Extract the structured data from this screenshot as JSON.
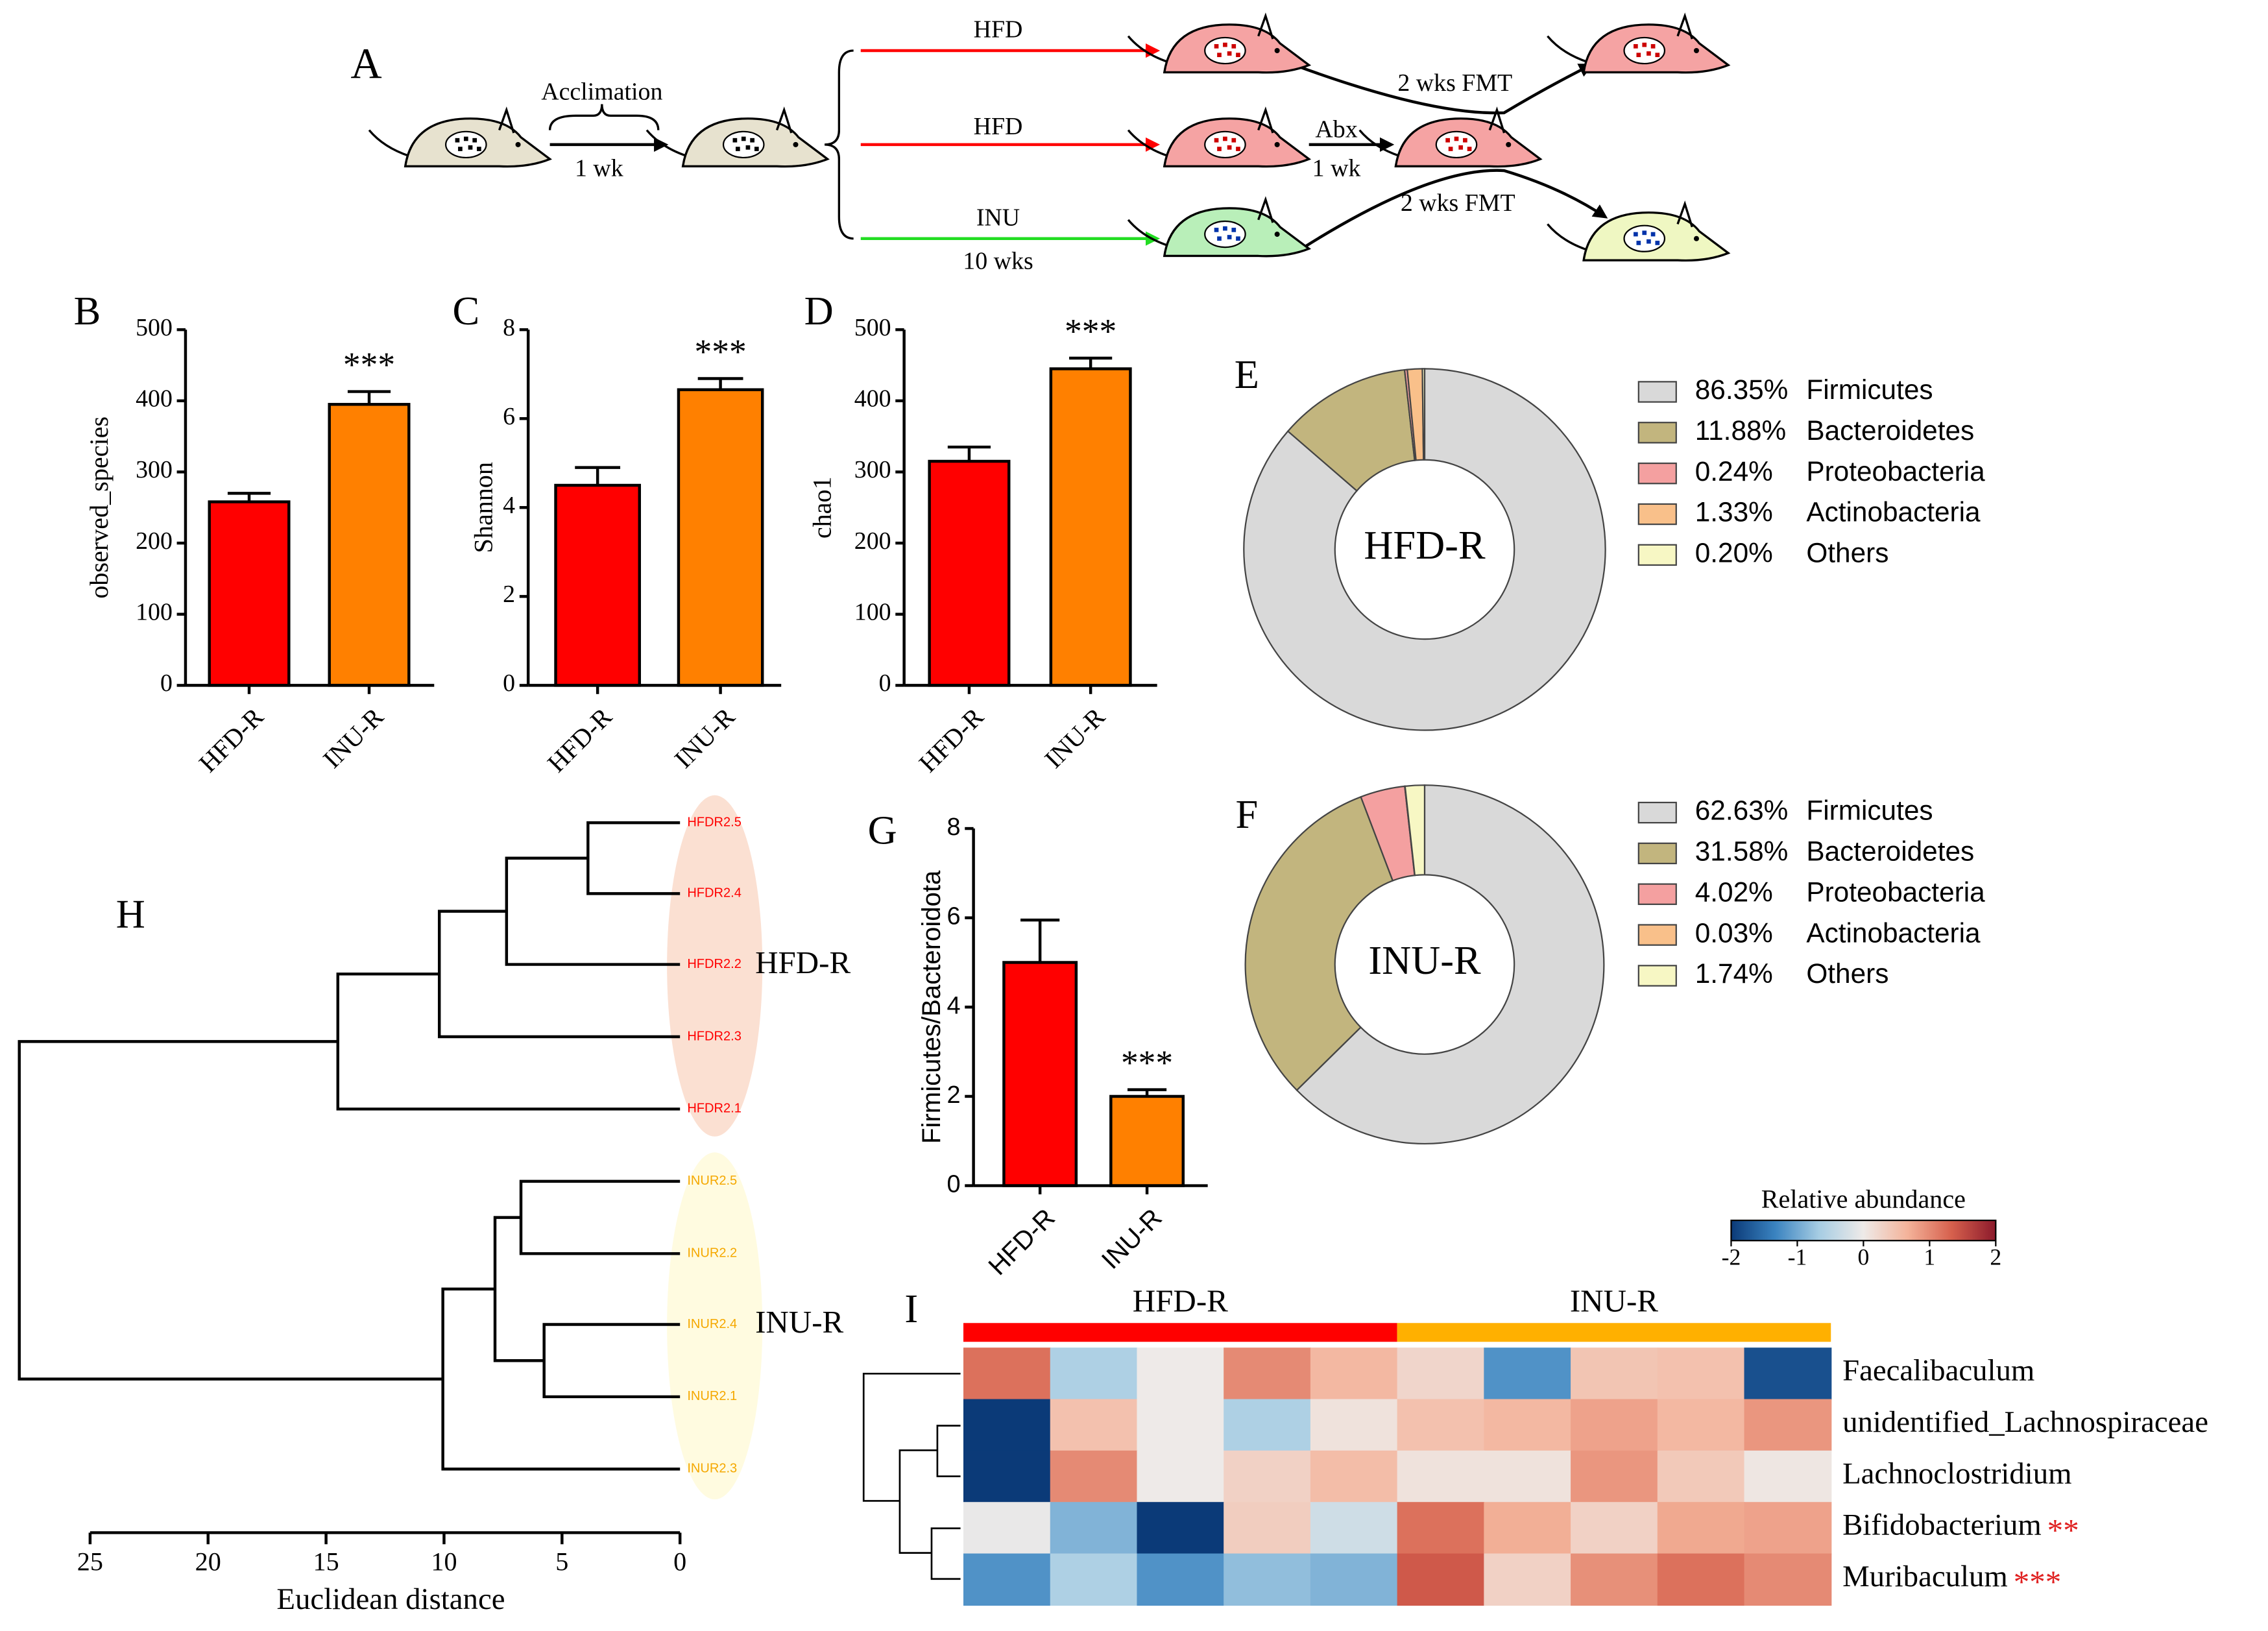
{
  "diagram": {
    "panel": "A",
    "labels": [
      "Acclimation",
      "1 wk",
      "HFD",
      "HFD",
      "INU",
      "10 wks",
      "Abx",
      "1 wk",
      "2 wks FMT",
      "2 wks FMT"
    ]
  },
  "chart_data": [
    {
      "type": "bar",
      "panel": "B",
      "y_label": "observed_species",
      "categories": [
        "HFD-R",
        "INU-R"
      ],
      "values": [
        258,
        395
      ],
      "errors": [
        12,
        18
      ],
      "colors": [
        "#ff0000",
        "#ff8000"
      ],
      "significance": [
        null,
        "***"
      ],
      "ylim": [
        0,
        500
      ],
      "yticks": [
        0,
        100,
        200,
        300,
        400,
        500
      ]
    },
    {
      "type": "bar",
      "panel": "C",
      "y_label": "Shannon",
      "categories": [
        "HFD-R",
        "INU-R"
      ],
      "values": [
        4.5,
        6.65
      ],
      "errors": [
        0.4,
        0.25
      ],
      "colors": [
        "#ff0000",
        "#ff8000"
      ],
      "significance": [
        null,
        "***"
      ],
      "ylim": [
        0,
        8
      ],
      "yticks": [
        0,
        2,
        4,
        6,
        8
      ]
    },
    {
      "type": "bar",
      "panel": "D",
      "y_label": "chao1",
      "categories": [
        "HFD-R",
        "INU-R"
      ],
      "values": [
        315,
        445
      ],
      "errors": [
        20,
        15
      ],
      "colors": [
        "#ff0000",
        "#ff8000"
      ],
      "significance": [
        null,
        "***"
      ],
      "ylim": [
        0,
        500
      ],
      "yticks": [
        0,
        100,
        200,
        300,
        400,
        500
      ]
    },
    {
      "type": "bar",
      "panel": "G",
      "y_label": "Firmicutes/Bacteroidota",
      "categories": [
        "HFD-R",
        "INU-R"
      ],
      "values": [
        5.0,
        2.0
      ],
      "errors": [
        0.95,
        0.15
      ],
      "colors": [
        "#ff0000",
        "#ff8000"
      ],
      "significance": [
        null,
        "***"
      ],
      "ylim": [
        0,
        8
      ],
      "yticks": [
        0,
        2,
        4,
        6,
        8
      ]
    },
    {
      "type": "pie",
      "panel": "E",
      "center_label": "HFD-R",
      "categories": [
        "Firmicutes",
        "Bacteroidetes",
        "Proteobacteria",
        "Actinobacteria",
        "Others"
      ],
      "values": [
        86.35,
        11.88,
        0.24,
        1.33,
        0.2
      ],
      "value_labels": [
        "86.35%",
        "11.88%",
        "0.24%",
        "1.33%",
        "0.20%"
      ],
      "colors": [
        "#d9d9d9",
        "#c2b57e",
        "#f4a0a0",
        "#f9c08a",
        "#f7f7c4"
      ]
    },
    {
      "type": "pie",
      "panel": "F",
      "center_label": "INU-R",
      "categories": [
        "Firmicutes",
        "Bacteroidetes",
        "Proteobacteria",
        "Actinobacteria",
        "Others"
      ],
      "values": [
        62.63,
        31.58,
        4.02,
        0.03,
        1.74
      ],
      "value_labels": [
        "62.63%",
        "31.58%",
        "4.02%",
        "0.03%",
        "1.74%"
      ],
      "colors": [
        "#d9d9d9",
        "#c2b57e",
        "#f4a0a0",
        "#f9c08a",
        "#f7f7c4"
      ]
    },
    {
      "type": "dendrogram",
      "panel": "H",
      "x_label": "Euclidean distance",
      "labels": [
        "HFDR2.5",
        "HFDR2.4",
        "HFDR2.2",
        "HFDR2.3",
        "HFDR2.1",
        "INUR2.5",
        "INUR2.2",
        "INUR2.4",
        "INUR2.1",
        "INUR2.3"
      ],
      "groups": [
        {
          "name": "HFD-R",
          "color": "#ff0000",
          "count": 5
        },
        {
          "name": "INU-R",
          "color": "#f5a800",
          "count": 5
        }
      ],
      "merges": [
        [
          0,
          1,
          3.9
        ],
        [
          10,
          2,
          7.35
        ],
        [
          11,
          3,
          10.2
        ],
        [
          12,
          4,
          14.5
        ],
        [
          5,
          6,
          6.74
        ],
        [
          7,
          8,
          5.76
        ],
        [
          14,
          15,
          7.84
        ],
        [
          16,
          9,
          10.05
        ],
        [
          13,
          17,
          28
        ]
      ],
      "xlim": [
        25,
        0
      ],
      "xticks": [
        25,
        20,
        15,
        10,
        5,
        0
      ]
    },
    {
      "type": "heatmap",
      "panel": "I",
      "rows": [
        "Faecalibaculum",
        "unidentified_Lachnospiraceae",
        "Lachnoclostridium",
        "Bifidobacterium",
        "Muribaculum"
      ],
      "row_annotations": [
        null,
        null,
        null,
        "**",
        "***"
      ],
      "groups": [
        {
          "name": "HFD-R",
          "color": "#ff0000",
          "count": 5
        },
        {
          "name": "INU-R",
          "color": "#ffb000",
          "count": 5
        }
      ],
      "values": [
        [
          1.2,
          -0.6,
          0,
          1.0,
          0.6,
          0.25,
          -1.2,
          0.45,
          0.5,
          -1.8
        ],
        [
          -2.5,
          0.5,
          0,
          -0.6,
          0.1,
          0.5,
          0.6,
          0.8,
          0.6,
          0.9
        ],
        [
          -2.5,
          1.0,
          0,
          0.3,
          0.55,
          0.1,
          0.1,
          0.9,
          0.4,
          0.05
        ],
        [
          -0.05,
          -0.9,
          -2.4,
          0.35,
          -0.3,
          1.2,
          0.7,
          0.3,
          0.75,
          0.8
        ],
        [
          -1.2,
          -0.6,
          -1.2,
          -0.8,
          -0.9,
          1.4,
          0.3,
          0.95,
          1.2,
          1.0
        ]
      ],
      "colorbar_title": "Relative abundance",
      "clim": [
        -2,
        2
      ],
      "cticks": [
        -2,
        -1,
        0,
        1,
        2
      ],
      "colormap": [
        "#0b3a78",
        "#3a83c0",
        "#a7cde3",
        "#eeeae8",
        "#f4b39a",
        "#d6604d",
        "#8b1a2b"
      ]
    }
  ]
}
